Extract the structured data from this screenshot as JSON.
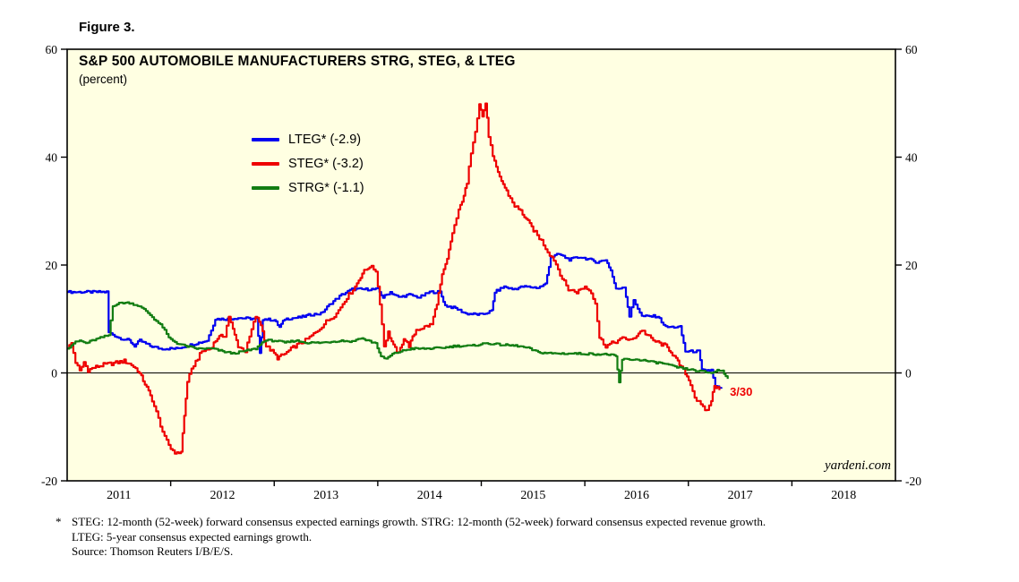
{
  "figure": {
    "label": "Figure 3."
  },
  "colors": {
    "plot_background": "#FFFFE2",
    "axis": "#000000",
    "blue": "#0000F0",
    "red": "#EE0000",
    "green": "#127D12"
  },
  "chart_data": {
    "type": "line",
    "title": "S&P 500 AUTOMOBILE MANUFACTURERS STRG, STEG, & LTEG",
    "subtitle": "(percent)",
    "watermark": "yardeni.com",
    "xlabel": "",
    "ylabel": "percent",
    "xlim": [
      2010.5,
      2018.5
    ],
    "ylim": [
      -20,
      60
    ],
    "y_ticks": [
      -20,
      0,
      20,
      40,
      60
    ],
    "x_tick_labels": [
      2011,
      2012,
      2013,
      2014,
      2015,
      2016,
      2017,
      2018
    ],
    "x_boundary_ticks": [
      2011.5,
      2012.5,
      2013.5,
      2014.5,
      2015.5,
      2016.5,
      2017.5
    ],
    "zero_line": 0,
    "legend_position": "upper-left",
    "grid": false,
    "annotations": [
      {
        "text": "3/30",
        "x": 2016.84,
        "y": -3.6,
        "color": "#EE0000"
      }
    ],
    "series": [
      {
        "name": "LTEG",
        "label": "LTEG* (-2.9)",
        "final_value": -2.9,
        "color": "#0000F0",
        "noise": 0.45,
        "points": [
          [
            2010.5,
            15
          ],
          [
            2010.88,
            15
          ],
          [
            2010.9,
            7.5
          ],
          [
            2011.0,
            6.5
          ],
          [
            2011.1,
            6
          ],
          [
            2011.15,
            5
          ],
          [
            2011.2,
            6
          ],
          [
            2011.3,
            5
          ],
          [
            2011.4,
            4.5
          ],
          [
            2011.55,
            4.5
          ],
          [
            2011.65,
            5
          ],
          [
            2011.75,
            5.5
          ],
          [
            2011.85,
            6
          ],
          [
            2011.93,
            10
          ],
          [
            2012.05,
            10
          ],
          [
            2012.15,
            10.2
          ],
          [
            2012.33,
            10
          ],
          [
            2012.36,
            3.5
          ],
          [
            2012.39,
            10
          ],
          [
            2012.5,
            9.8
          ],
          [
            2012.55,
            8.5
          ],
          [
            2012.6,
            10
          ],
          [
            2012.75,
            10.3
          ],
          [
            2012.85,
            10.8
          ],
          [
            2012.95,
            11
          ],
          [
            2013.05,
            13
          ],
          [
            2013.15,
            14.5
          ],
          [
            2013.25,
            15.5
          ],
          [
            2013.5,
            15.5
          ],
          [
            2013.55,
            14
          ],
          [
            2013.62,
            15
          ],
          [
            2013.7,
            14
          ],
          [
            2013.8,
            14.5
          ],
          [
            2013.9,
            14
          ],
          [
            2014.0,
            15
          ],
          [
            2014.1,
            15
          ],
          [
            2014.15,
            12.5
          ],
          [
            2014.25,
            12
          ],
          [
            2014.35,
            11
          ],
          [
            2014.5,
            10.8
          ],
          [
            2014.6,
            11.5
          ],
          [
            2014.63,
            15
          ],
          [
            2014.72,
            16
          ],
          [
            2014.8,
            15.5
          ],
          [
            2014.9,
            16
          ],
          [
            2015.05,
            15.8
          ],
          [
            2015.12,
            16.5
          ],
          [
            2015.17,
            21.5
          ],
          [
            2015.25,
            22
          ],
          [
            2015.35,
            21
          ],
          [
            2015.45,
            21.5
          ],
          [
            2015.55,
            21
          ],
          [
            2015.62,
            20.5
          ],
          [
            2015.7,
            21
          ],
          [
            2015.75,
            19
          ],
          [
            2015.8,
            15.5
          ],
          [
            2015.88,
            16
          ],
          [
            2015.93,
            10.5
          ],
          [
            2015.97,
            13.5
          ],
          [
            2016.05,
            10.5
          ],
          [
            2016.2,
            10.5
          ],
          [
            2016.28,
            8.5
          ],
          [
            2016.42,
            8.5
          ],
          [
            2016.47,
            4
          ],
          [
            2016.6,
            4
          ],
          [
            2016.63,
            0.5
          ],
          [
            2016.72,
            0.5
          ],
          [
            2016.76,
            -2.5
          ],
          [
            2016.82,
            -2.9
          ]
        ]
      },
      {
        "name": "STEG",
        "label": "STEG* (-3.2)",
        "final_value": -3.2,
        "color": "#EE0000",
        "noise": 0.7,
        "points": [
          [
            2010.5,
            4.5
          ],
          [
            2010.54,
            5.5
          ],
          [
            2010.58,
            2
          ],
          [
            2010.62,
            0.3
          ],
          [
            2010.66,
            2
          ],
          [
            2010.7,
            0.5
          ],
          [
            2010.76,
            1
          ],
          [
            2010.85,
            1.5
          ],
          [
            2010.95,
            1.8
          ],
          [
            2011.05,
            2.2
          ],
          [
            2011.12,
            1.5
          ],
          [
            2011.18,
            0.5
          ],
          [
            2011.25,
            -2
          ],
          [
            2011.32,
            -5
          ],
          [
            2011.38,
            -8.5
          ],
          [
            2011.44,
            -12
          ],
          [
            2011.5,
            -14
          ],
          [
            2011.56,
            -15
          ],
          [
            2011.6,
            -14.5
          ],
          [
            2011.63,
            -8
          ],
          [
            2011.66,
            -1.5
          ],
          [
            2011.72,
            1.5
          ],
          [
            2011.8,
            4
          ],
          [
            2011.88,
            4.5
          ],
          [
            2011.95,
            6.5
          ],
          [
            2012.02,
            7
          ],
          [
            2012.06,
            10.5
          ],
          [
            2012.1,
            8
          ],
          [
            2012.15,
            5
          ],
          [
            2012.22,
            4
          ],
          [
            2012.28,
            8
          ],
          [
            2012.32,
            10.5
          ],
          [
            2012.37,
            9
          ],
          [
            2012.42,
            5
          ],
          [
            2012.48,
            4
          ],
          [
            2012.53,
            2.8
          ],
          [
            2012.6,
            3.5
          ],
          [
            2012.7,
            5
          ],
          [
            2012.8,
            6
          ],
          [
            2012.9,
            7.5
          ],
          [
            2013.0,
            9.5
          ],
          [
            2013.1,
            11
          ],
          [
            2013.18,
            13.5
          ],
          [
            2013.28,
            16
          ],
          [
            2013.35,
            18.5
          ],
          [
            2013.42,
            19.8
          ],
          [
            2013.48,
            19
          ],
          [
            2013.52,
            13
          ],
          [
            2013.56,
            5
          ],
          [
            2013.6,
            7.5
          ],
          [
            2013.65,
            5
          ],
          [
            2013.7,
            3.5
          ],
          [
            2013.75,
            6.5
          ],
          [
            2013.8,
            5
          ],
          [
            2013.87,
            8
          ],
          [
            2013.95,
            8.5
          ],
          [
            2014.02,
            9
          ],
          [
            2014.07,
            13
          ],
          [
            2014.12,
            18
          ],
          [
            2014.17,
            21
          ],
          [
            2014.22,
            26
          ],
          [
            2014.28,
            30
          ],
          [
            2014.33,
            33
          ],
          [
            2014.36,
            35
          ],
          [
            2014.4,
            41
          ],
          [
            2014.44,
            45
          ],
          [
            2014.48,
            50
          ],
          [
            2014.51,
            47.5
          ],
          [
            2014.54,
            50
          ],
          [
            2014.57,
            44
          ],
          [
            2014.61,
            40
          ],
          [
            2014.66,
            37
          ],
          [
            2014.71,
            35
          ],
          [
            2014.76,
            33
          ],
          [
            2014.82,
            31
          ],
          [
            2014.88,
            30
          ],
          [
            2014.95,
            28
          ],
          [
            2015.02,
            26
          ],
          [
            2015.08,
            24.5
          ],
          [
            2015.14,
            22.5
          ],
          [
            2015.2,
            21
          ],
          [
            2015.28,
            17.5
          ],
          [
            2015.34,
            15.5
          ],
          [
            2015.42,
            15
          ],
          [
            2015.5,
            16
          ],
          [
            2015.56,
            15
          ],
          [
            2015.6,
            13
          ],
          [
            2015.64,
            6.5
          ],
          [
            2015.7,
            5
          ],
          [
            2015.76,
            5.5
          ],
          [
            2015.82,
            6
          ],
          [
            2015.88,
            6.5
          ],
          [
            2015.95,
            6
          ],
          [
            2016.0,
            7
          ],
          [
            2016.05,
            8
          ],
          [
            2016.1,
            7
          ],
          [
            2016.16,
            6
          ],
          [
            2016.22,
            5.5
          ],
          [
            2016.28,
            5
          ],
          [
            2016.33,
            4
          ],
          [
            2016.38,
            2.5
          ],
          [
            2016.43,
            1
          ],
          [
            2016.47,
            0
          ],
          [
            2016.52,
            -2
          ],
          [
            2016.56,
            -4.5
          ],
          [
            2016.6,
            -5.5
          ],
          [
            2016.64,
            -6.5
          ],
          [
            2016.68,
            -7
          ],
          [
            2016.72,
            -5
          ],
          [
            2016.75,
            -2.5
          ],
          [
            2016.78,
            -2.6
          ],
          [
            2016.8,
            -3.2
          ]
        ]
      },
      {
        "name": "STRG",
        "label": "STRG* (-1.1)",
        "final_value": -1.1,
        "color": "#127D12",
        "noise": 0.35,
        "points": [
          [
            2010.5,
            4.5
          ],
          [
            2010.56,
            5.5
          ],
          [
            2010.62,
            6
          ],
          [
            2010.68,
            5.5
          ],
          [
            2010.74,
            6
          ],
          [
            2010.82,
            6.5
          ],
          [
            2010.9,
            7
          ],
          [
            2010.94,
            12.5
          ],
          [
            2011.02,
            13
          ],
          [
            2011.1,
            13
          ],
          [
            2011.18,
            12.5
          ],
          [
            2011.26,
            11.5
          ],
          [
            2011.34,
            10
          ],
          [
            2011.42,
            8.5
          ],
          [
            2011.48,
            6.5
          ],
          [
            2011.56,
            5.5
          ],
          [
            2011.64,
            5
          ],
          [
            2011.75,
            4.5
          ],
          [
            2011.9,
            4.5
          ],
          [
            2012.0,
            4
          ],
          [
            2012.1,
            3.6
          ],
          [
            2012.2,
            4
          ],
          [
            2012.32,
            4.5
          ],
          [
            2012.4,
            6
          ],
          [
            2012.5,
            6
          ],
          [
            2012.6,
            5.6
          ],
          [
            2012.7,
            6
          ],
          [
            2012.82,
            5.6
          ],
          [
            2012.95,
            5.6
          ],
          [
            2013.05,
            5.8
          ],
          [
            2013.15,
            6
          ],
          [
            2013.25,
            5.8
          ],
          [
            2013.33,
            6.5
          ],
          [
            2013.4,
            6
          ],
          [
            2013.48,
            5.5
          ],
          [
            2013.53,
            3
          ],
          [
            2013.58,
            2.6
          ],
          [
            2013.64,
            3.5
          ],
          [
            2013.72,
            4
          ],
          [
            2013.82,
            4.5
          ],
          [
            2013.95,
            4.5
          ],
          [
            2014.1,
            4.6
          ],
          [
            2014.25,
            5
          ],
          [
            2014.4,
            5
          ],
          [
            2014.55,
            5.5
          ],
          [
            2014.7,
            5.2
          ],
          [
            2014.85,
            5
          ],
          [
            2014.95,
            4.6
          ],
          [
            2015.05,
            3.8
          ],
          [
            2015.2,
            3.6
          ],
          [
            2015.4,
            3.6
          ],
          [
            2015.6,
            3.5
          ],
          [
            2015.75,
            3.4
          ],
          [
            2015.8,
            3
          ],
          [
            2015.83,
            -1.8
          ],
          [
            2015.86,
            2.5
          ],
          [
            2015.95,
            2.5
          ],
          [
            2016.05,
            2.4
          ],
          [
            2016.15,
            2
          ],
          [
            2016.25,
            1.8
          ],
          [
            2016.35,
            1.2
          ],
          [
            2016.45,
            0.8
          ],
          [
            2016.55,
            0.5
          ],
          [
            2016.65,
            0.2
          ],
          [
            2016.72,
            0
          ],
          [
            2016.78,
            0.5
          ],
          [
            2016.83,
            0.4
          ],
          [
            2016.86,
            -0.6
          ],
          [
            2016.88,
            -1.1
          ]
        ]
      }
    ]
  },
  "footnote": {
    "star": "*",
    "lines": [
      "STEG: 12-month (52-week) forward consensus expected earnings growth. STRG: 12-month (52-week) forward consensus expected revenue growth.",
      "LTEG: 5-year consensus expected earnings growth.",
      "Source: Thomson Reuters I/B/E/S."
    ]
  }
}
